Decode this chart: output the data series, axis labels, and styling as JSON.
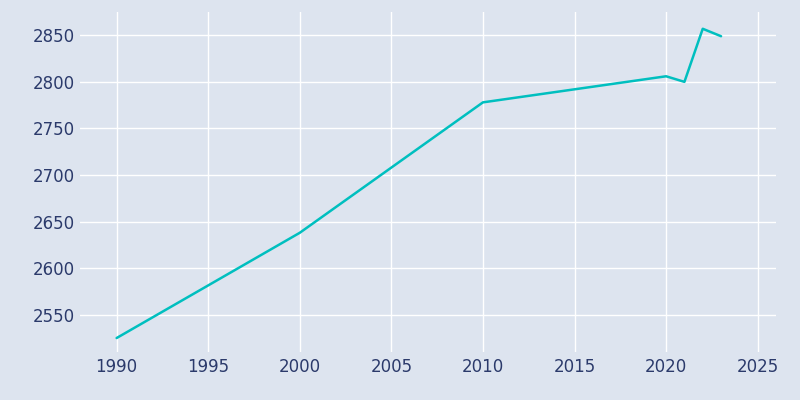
{
  "years": [
    1990,
    2000,
    2010,
    2015,
    2020,
    2021,
    2022,
    2023
  ],
  "population": [
    2525,
    2638,
    2778,
    2792,
    2806,
    2800,
    2857,
    2849
  ],
  "line_color": "#00BFBF",
  "background_color": "#dde4ef",
  "plot_background": "#dde4ef",
  "text_color": "#2b3a6b",
  "xlim": [
    1988,
    2026
  ],
  "ylim": [
    2510,
    2875
  ],
  "xticks": [
    1990,
    1995,
    2000,
    2005,
    2010,
    2015,
    2020,
    2025
  ],
  "yticks": [
    2550,
    2600,
    2650,
    2700,
    2750,
    2800,
    2850
  ],
  "line_width": 1.8,
  "tick_fontsize": 12
}
